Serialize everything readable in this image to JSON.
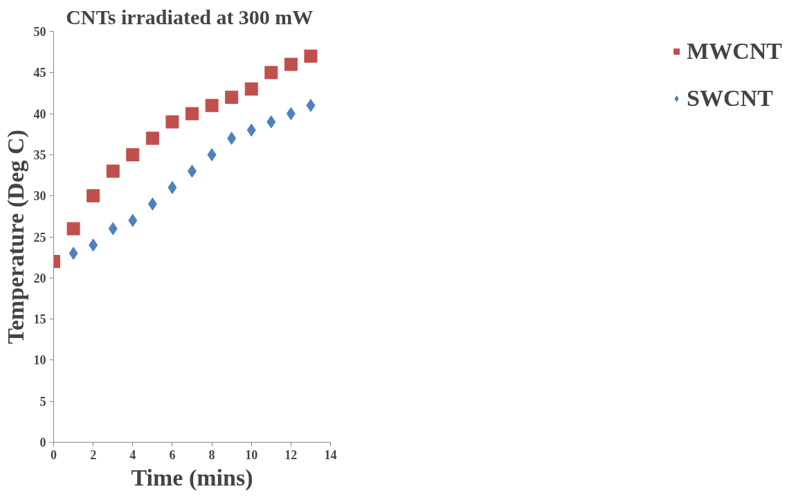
{
  "chart_data": {
    "type": "scatter",
    "title": "CNTs irradiated at  300 mW",
    "xlabel": "Time (mins)",
    "ylabel": "Temperature (Deg C)",
    "x": [
      0,
      1,
      2,
      3,
      4,
      5,
      6,
      7,
      8,
      9,
      10,
      11,
      12,
      13
    ],
    "series": [
      {
        "name": "MWCNT",
        "color": "#c0504d",
        "marker": "square",
        "values": [
          22,
          26,
          30,
          33,
          35,
          37,
          39,
          40,
          41,
          42,
          43,
          45,
          46,
          47
        ]
      },
      {
        "name": "SWCNT",
        "color": "#4f81bd",
        "marker": "diamond",
        "values": [
          null,
          23,
          24,
          26,
          27,
          29,
          31,
          33,
          35,
          37,
          38,
          39,
          40,
          41
        ]
      }
    ],
    "xlim": [
      0,
      14
    ],
    "xticks": [
      0,
      2,
      4,
      6,
      8,
      10,
      12,
      14
    ],
    "ylim": [
      0,
      50
    ],
    "yticks": [
      0,
      5,
      10,
      15,
      20,
      25,
      30,
      35,
      40,
      45,
      50
    ],
    "grid": false,
    "legend": "right"
  }
}
